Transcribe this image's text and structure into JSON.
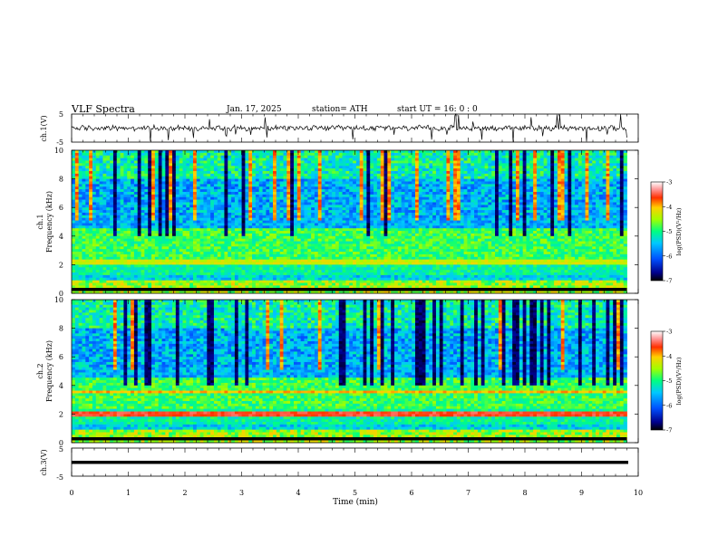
{
  "header": {
    "title": "VLF  Spectra",
    "date": "Jan.  17,  2025",
    "station": "station= ATH",
    "start_ut": "start  UT  =    16: 0   : 0"
  },
  "chart_data": [
    {
      "type": "line",
      "panel": "ch1-waveform",
      "ylabel": "ch.1(V)",
      "ylim": [
        -5,
        5
      ],
      "yticks": [
        5,
        -5
      ],
      "xlim": [
        0,
        10
      ],
      "data_extent_min": [
        0,
        9.8
      ],
      "description_values": "broadband noise near 0 V with spikes to about +/-5 V"
    },
    {
      "type": "heatmap",
      "panel": "ch1-spectrogram",
      "ylabel": "ch.1\nFrequency  (kHz)",
      "ylabel_lines": [
        "ch.1",
        "Frequency  (kHz)"
      ],
      "ylim": [
        0,
        10
      ],
      "yticks": [
        0,
        2,
        4,
        6,
        8,
        10
      ],
      "xlim": [
        0,
        10
      ],
      "colorbar": {
        "label": "log(PSD)(V²/Hz)",
        "range": [
          -7,
          -3
        ],
        "ticks": [
          -3,
          -4,
          -5,
          -6,
          -7
        ]
      }
    },
    {
      "type": "heatmap",
      "panel": "ch2-spectrogram",
      "ylabel_lines": [
        "ch.2",
        "Frequency  (kHz)"
      ],
      "ylim": [
        0,
        10
      ],
      "yticks": [
        0,
        2,
        4,
        6,
        8,
        10
      ],
      "xlim": [
        0,
        10
      ],
      "colorbar": {
        "label": "log(PSD)(V²/Hz)",
        "range": [
          -7,
          -3
        ],
        "ticks": [
          -3,
          -4,
          -5,
          -6,
          -7
        ]
      }
    },
    {
      "type": "line",
      "panel": "ch3-waveform",
      "ylabel": "ch.3(V)",
      "ylim": [
        -5,
        5
      ],
      "yticks": [
        5,
        -5
      ],
      "xlim": [
        0,
        10
      ],
      "xlabel": "Time  (min)",
      "xticks": [
        0,
        1,
        2,
        3,
        4,
        5,
        6,
        7,
        8,
        9,
        10
      ]
    }
  ],
  "labels": {
    "ch1_v": "ch.1(V)",
    "ch1_freq_a": "ch.1",
    "ch1_freq_b": "Frequency  (kHz)",
    "ch2_freq_a": "ch.2",
    "ch2_freq_b": "Frequency  (kHz)",
    "ch3_v": "ch.3(V)",
    "xlabel": "Time  (min)",
    "cbar_label": "log(PSD)(V²/Hz)"
  }
}
